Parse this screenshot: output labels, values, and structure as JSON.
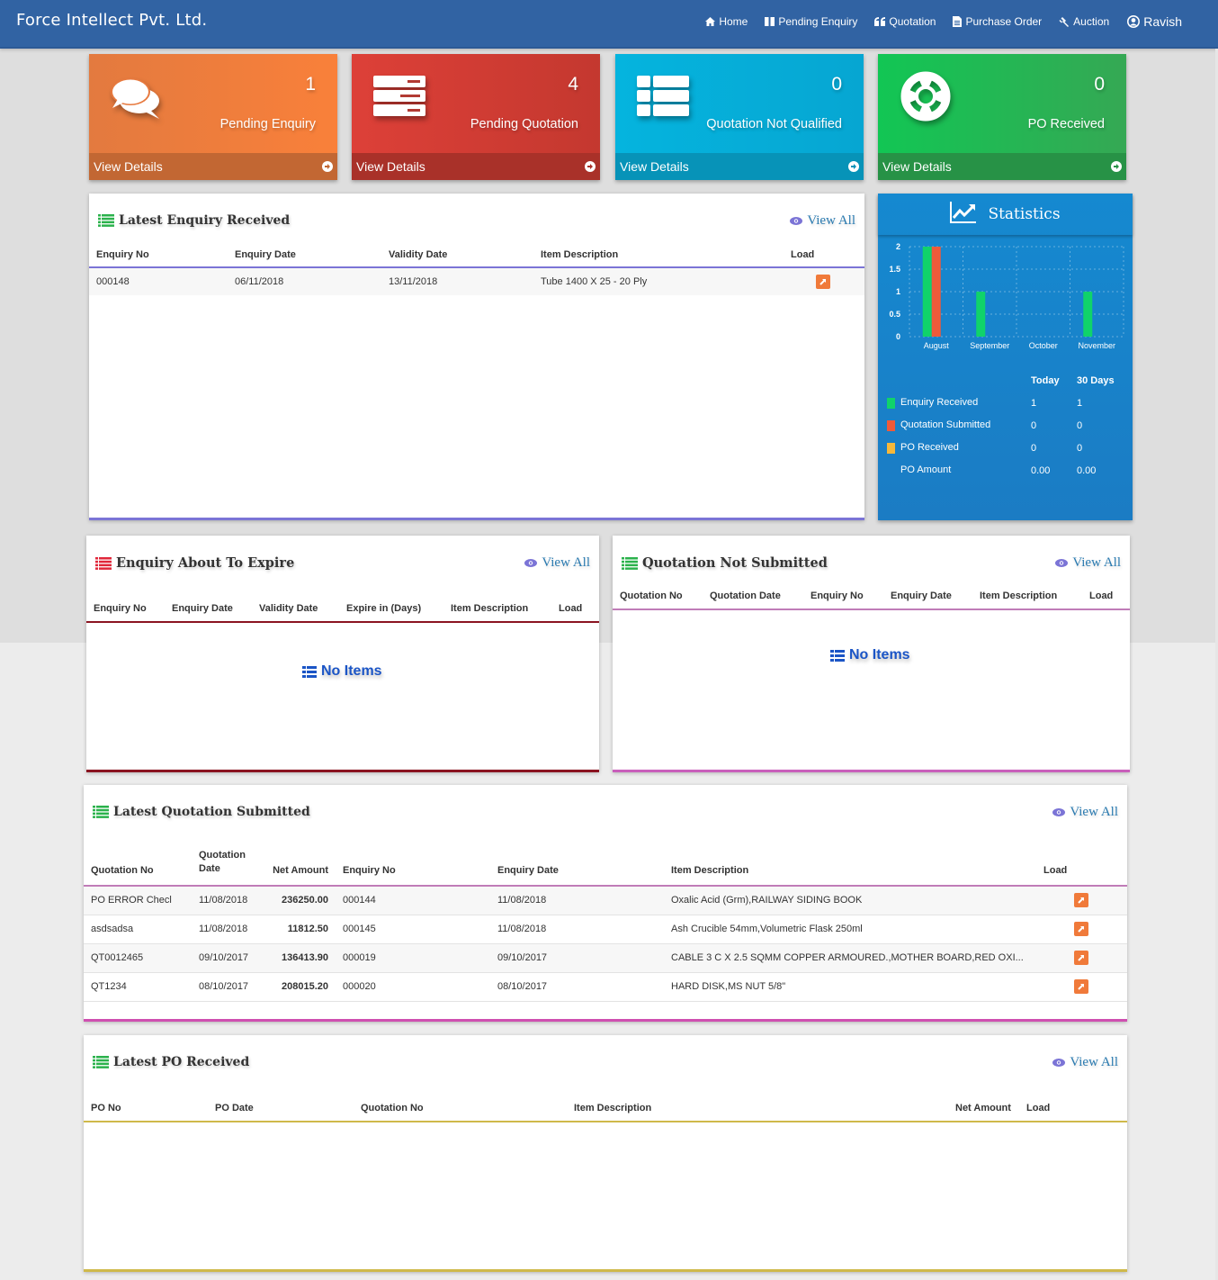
{
  "navbar": {
    "brand": "Force Intellect Pvt. Ltd.",
    "items": [
      {
        "label": "Home",
        "icon": "home-icon"
      },
      {
        "label": "Pending Enquiry",
        "icon": "columns-icon"
      },
      {
        "label": "Quotation",
        "icon": "quote-icon"
      },
      {
        "label": "Purchase Order",
        "icon": "file-icon"
      },
      {
        "label": "Auction",
        "icon": "gavel-icon"
      }
    ],
    "user": {
      "label": "Ravish",
      "icon": "user-circle-icon"
    }
  },
  "tiles": [
    {
      "count": "1",
      "label": "Pending Enquiry",
      "footer": "View Details",
      "icon": "comments-icon",
      "color": "#f57f3b"
    },
    {
      "count": "4",
      "label": "Pending Quotation",
      "footer": "View Details",
      "icon": "server-icon",
      "color": "#d93e36"
    },
    {
      "count": "0",
      "label": "Quotation Not Qualified",
      "footer": "View Details",
      "icon": "th-list-icon",
      "color": "#05aed9"
    },
    {
      "count": "0",
      "label": "PO Received",
      "footer": "View Details",
      "icon": "life-ring-icon",
      "color": "#1ebd54"
    }
  ],
  "latest_enquiry": {
    "title": "Latest Enquiry Received",
    "view_all": "View All",
    "columns": [
      "Enquiry No",
      "Enquiry Date",
      "Validity Date",
      "Item Description",
      "Load"
    ],
    "rows": [
      {
        "enquiry_no": "000148",
        "enquiry_date": "06/11/2018",
        "validity_date": "13/11/2018",
        "item_description": "Tube 1400 X 25 - 20 Ply"
      }
    ]
  },
  "statistics": {
    "title": "Statistics",
    "columns": [
      "Today",
      "30 Days"
    ],
    "rows": [
      {
        "label": "Enquiry Received",
        "color": "#10d36a",
        "today": "1",
        "days30": "1"
      },
      {
        "label": "Quotation Submitted",
        "color": "#ef5a3a",
        "today": "0",
        "days30": "0"
      },
      {
        "label": "PO Received",
        "color": "#f7b83a",
        "today": "0",
        "days30": "0"
      },
      {
        "label": "PO Amount",
        "color": "",
        "today": "0.00",
        "days30": "0.00"
      }
    ]
  },
  "chart_data": {
    "type": "bar",
    "title": "Statistics",
    "categories": [
      "August",
      "September",
      "October",
      "November"
    ],
    "series": [
      {
        "name": "Enquiry Received",
        "color": "#10d36a",
        "values": [
          2,
          1,
          0,
          1
        ]
      },
      {
        "name": "Quotation Submitted",
        "color": "#ef5a3a",
        "values": [
          2,
          0,
          0,
          0
        ]
      },
      {
        "name": "PO Received",
        "color": "#f7b83a",
        "values": [
          0,
          0,
          0,
          0
        ]
      }
    ],
    "yticks": [
      "2",
      "1.5",
      "1",
      "0.5",
      "0"
    ],
    "ylim": [
      0,
      2
    ],
    "xlabel": "",
    "ylabel": "",
    "grid": true,
    "legend_position": "below"
  },
  "enquiry_expire": {
    "title": "Enquiry About To Expire",
    "view_all": "View All",
    "columns": [
      "Enquiry No",
      "Enquiry Date",
      "Validity Date",
      "Expire in (Days)",
      "Item Description",
      "Load"
    ],
    "empty_text": "No Items"
  },
  "quotation_not_submitted": {
    "title": "Quotation Not Submitted",
    "view_all": "View All",
    "columns": [
      "Quotation No",
      "Quotation Date",
      "Enquiry No",
      "Enquiry Date",
      "Item Description",
      "Load"
    ],
    "empty_text": "No Items"
  },
  "latest_quotation": {
    "title": "Latest Quotation Submitted",
    "view_all": "View All",
    "columns": [
      "Quotation No",
      "Quotation Date",
      "Net Amount",
      "Enquiry No",
      "Enquiry Date",
      "Item Description",
      "Load"
    ],
    "rows": [
      {
        "quotation_no": "PO ERROR Checl",
        "quotation_date": "11/08/2018",
        "net_amount": "236250.00",
        "enquiry_no": "000144",
        "enquiry_date": "11/08/2018",
        "item_description": "Oxalic Acid (Grm),RAILWAY SIDING BOOK"
      },
      {
        "quotation_no": "asdsadsa",
        "quotation_date": "11/08/2018",
        "net_amount": "11812.50",
        "enquiry_no": "000145",
        "enquiry_date": "11/08/2018",
        "item_description": "Ash Crucible 54mm,Volumetric Flask 250ml"
      },
      {
        "quotation_no": "QT0012465",
        "quotation_date": "09/10/2017",
        "net_amount": "136413.90",
        "enquiry_no": "000019",
        "enquiry_date": "09/10/2017",
        "item_description": "CABLE 3 C X 2.5 SQMM COPPER ARMOURED.,MOTHER BOARD,RED OXI..."
      },
      {
        "quotation_no": "QT1234",
        "quotation_date": "08/10/2017",
        "net_amount": "208015.20",
        "enquiry_no": "000020",
        "enquiry_date": "08/10/2017",
        "item_description": "HARD DISK,MS NUT 5/8\""
      }
    ]
  },
  "latest_po": {
    "title": "Latest PO Received",
    "view_all": "View All",
    "columns": [
      "PO No",
      "PO Date",
      "Quotation No",
      "Item Description",
      "Net Amount",
      "Load"
    ]
  }
}
